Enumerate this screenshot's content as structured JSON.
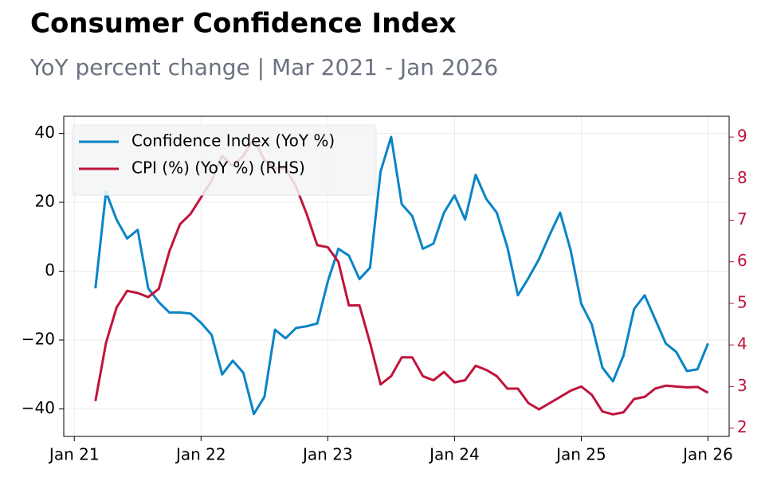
{
  "chart_data": {
    "type": "line",
    "title": "Consumer Confidence Index",
    "subtitle": "YoY percent change | Mar 2021 - Jan 2026",
    "x": [
      "2021-03",
      "2021-04",
      "2021-05",
      "2021-06",
      "2021-07",
      "2021-08",
      "2021-09",
      "2021-10",
      "2021-11",
      "2021-12",
      "2022-01",
      "2022-02",
      "2022-03",
      "2022-04",
      "2022-05",
      "2022-06",
      "2022-07",
      "2022-08",
      "2022-09",
      "2022-10",
      "2022-11",
      "2022-12",
      "2023-01",
      "2023-02",
      "2023-03",
      "2023-04",
      "2023-05",
      "2023-06",
      "2023-07",
      "2023-08",
      "2023-09",
      "2023-10",
      "2023-11",
      "2023-12",
      "2024-01",
      "2024-02",
      "2024-03",
      "2024-04",
      "2024-05",
      "2024-06",
      "2024-07",
      "2024-08",
      "2024-09",
      "2024-10",
      "2024-11",
      "2024-12",
      "2025-01",
      "2025-02",
      "2025-03",
      "2025-04",
      "2025-05",
      "2025-06",
      "2025-07",
      "2025-08",
      "2025-09",
      "2025-10",
      "2025-11",
      "2025-12",
      "2026-01"
    ],
    "series": [
      {
        "name": "Confidence Index (YoY %)",
        "color": "#0a84c6",
        "values": [
          -5,
          23,
          15,
          9.5,
          12,
          -5,
          -9,
          -12,
          -12,
          -12.3,
          -15,
          -18.5,
          -30,
          -26,
          -29.5,
          -41.5,
          -36.5,
          -17,
          -19.5,
          -16.5,
          -16,
          -15.2,
          -3,
          6.5,
          4.5,
          -2.3,
          1,
          29,
          39,
          19.5,
          16,
          6.5,
          8,
          17,
          22,
          15,
          28,
          21,
          17,
          7,
          -7,
          -2,
          3.5,
          10.5,
          17,
          6,
          -9.5,
          -15.5,
          -28,
          -32,
          -24.5,
          -11,
          -7,
          -14,
          -21,
          -23.5,
          -29,
          -28.5,
          -21
        ]
      },
      {
        "name": "CPI (%) (YoY %) (RHS)",
        "color": "#c0143c",
        "axis": "y2",
        "values": [
          2.65,
          4.05,
          4.9,
          5.3,
          5.25,
          5.15,
          5.35,
          6.25,
          6.9,
          7.15,
          7.55,
          7.95,
          8.55,
          8.3,
          8.55,
          8.95,
          8.45,
          8.25,
          8.25,
          7.8,
          7.15,
          6.4,
          6.35,
          6.0,
          4.95,
          4.95,
          4.05,
          3.05,
          3.25,
          3.7,
          3.7,
          3.25,
          3.15,
          3.35,
          3.1,
          3.15,
          3.5,
          3.4,
          3.25,
          2.95,
          2.95,
          2.6,
          2.45,
          2.6,
          2.75,
          2.9,
          3.0,
          2.8,
          2.4,
          2.33,
          2.38,
          2.7,
          2.75,
          2.95,
          3.02,
          3.0,
          2.98,
          2.99,
          2.85
        ]
      }
    ],
    "xlim": [
      "2020-12",
      "2026-03"
    ],
    "xticks": [
      {
        "value": "2021-01",
        "label": "Jan 21"
      },
      {
        "value": "2022-01",
        "label": "Jan 22"
      },
      {
        "value": "2023-01",
        "label": "Jan 23"
      },
      {
        "value": "2024-01",
        "label": "Jan 24"
      },
      {
        "value": "2025-01",
        "label": "Jan 25"
      },
      {
        "value": "2026-01",
        "label": "Jan 26"
      }
    ],
    "ylim": [
      -48,
      45
    ],
    "yticks": [
      {
        "value": -40,
        "label": "−40"
      },
      {
        "value": -20,
        "label": "−20"
      },
      0,
      20,
      40
    ],
    "y2lim": [
      1.8,
      9.5
    ],
    "y2ticks": [
      2,
      3,
      4,
      5,
      6,
      7,
      8,
      9
    ],
    "grid": true,
    "legend": "upper left"
  }
}
